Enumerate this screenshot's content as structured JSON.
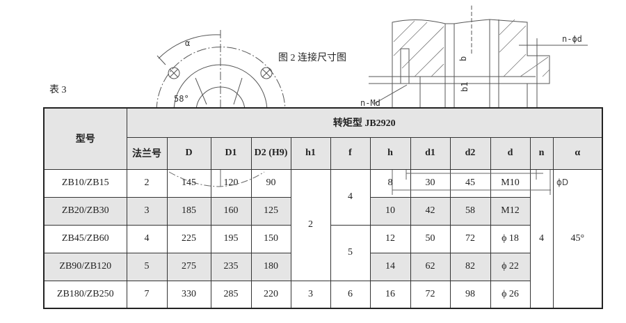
{
  "figure": {
    "caption": "图 2  连接尺寸图",
    "labels": {
      "alpha": "α",
      "angle": "58°",
      "n_md": "n-Md",
      "n_phi_d": "n-ϕd",
      "b": "b",
      "b1": "b1",
      "phi_d_overlay": "ϕD"
    }
  },
  "table": {
    "caption": "表 3",
    "model_header": "型号",
    "group_header_prefix": "转矩型 ",
    "group_header_code": "JB2920",
    "columns": [
      "法兰号",
      "D",
      "D1",
      "D2 (H9)",
      "h1",
      "f",
      "h",
      "d1",
      "d2",
      "d",
      "n",
      "α"
    ],
    "rows": [
      {
        "model": "ZB10/ZB15",
        "flange": "2",
        "D": "145",
        "D1": "120",
        "D2": "90",
        "h": "8",
        "d1": "30",
        "d2": "45",
        "d": "M10"
      },
      {
        "model": "ZB20/ZB30",
        "flange": "3",
        "D": "185",
        "D1": "160",
        "D2": "125",
        "h": "10",
        "d1": "42",
        "d2": "58",
        "d": "M12"
      },
      {
        "model": "ZB45/ZB60",
        "flange": "4",
        "D": "225",
        "D1": "195",
        "D2": "150",
        "h": "12",
        "d1": "50",
        "d2": "72",
        "d": "ϕ 18"
      },
      {
        "model": "ZB90/ZB120",
        "flange": "5",
        "D": "275",
        "D1": "235",
        "D2": "180",
        "h": "14",
        "d1": "62",
        "d2": "82",
        "d": "ϕ 22"
      },
      {
        "model": "ZB180/ZB250",
        "flange": "7",
        "D": "330",
        "D1": "285",
        "D2": "220",
        "h": "16",
        "d1": "72",
        "d2": "98",
        "d": "ϕ 26"
      }
    ],
    "merged": {
      "h1_rows1_4": "2",
      "h1_row5": "3",
      "f_rows1_2": "4",
      "f_rows3_4": "5",
      "f_row5": "6",
      "n_all": "4",
      "alpha_all": "45°"
    }
  }
}
